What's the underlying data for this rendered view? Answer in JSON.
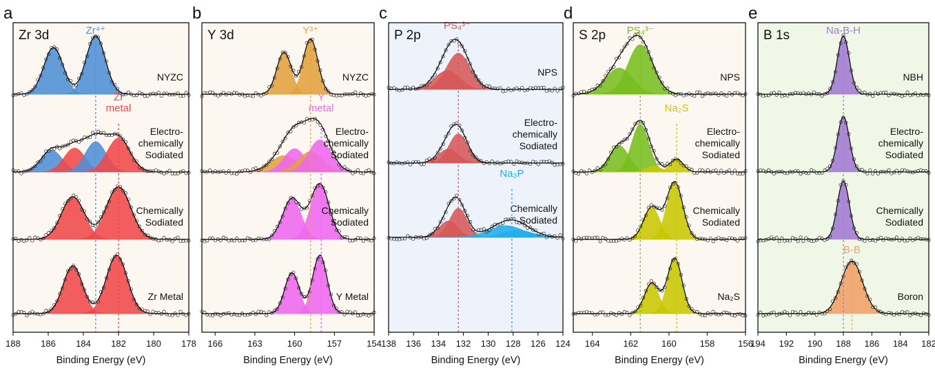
{
  "panel_letters": [
    "a",
    "b",
    "c",
    "d",
    "e"
  ],
  "colors": {
    "zr_blue": "#4f8fd6",
    "red": "#f04848",
    "y_orange": "#e2a23e",
    "magenta": "#ee68ee",
    "p_red": "#d65858",
    "na3p_blue": "#20aee8",
    "s_green": "#78be1e",
    "s_olive": "#c8c800",
    "b_purple": "#a07ad2",
    "b_orange": "#f0a068",
    "bg_a": "#fdf7f2",
    "bg_b": "#fdf7f2",
    "bg_c": "#eef3fb",
    "bg_d": "#fdf7f2",
    "bg_e": "#f1f7e6"
  },
  "chart_data": [
    {
      "type": "line",
      "panel": "a",
      "title": "Zr 3d",
      "xlabel": "Binding Energy (eV)",
      "x_reversed": true,
      "xlim": [
        188,
        178
      ],
      "xticks": [
        188,
        186,
        184,
        182,
        180,
        178
      ],
      "bg_key": "bg_a",
      "annotations": [
        {
          "text": "Zr⁴⁺",
          "color_key": "zr_blue",
          "x": 183.3,
          "trace": 0
        },
        {
          "text": "Zr",
          "color_key": "red",
          "x": 182.0,
          "trace": 1,
          "line2": "metal"
        }
      ],
      "ref_lines": [
        {
          "x": 183.3,
          "color_key": "zr_blue",
          "from_trace": 0,
          "to_trace": 3
        },
        {
          "x": 182.0,
          "color_key": "red",
          "from_trace": 1,
          "to_trace": 3
        }
      ],
      "traces": [
        {
          "label": [
            "NYZC"
          ],
          "peaks": [
            {
              "center": 185.7,
              "height": 0.8,
              "width": 0.55,
              "color_key": "zr_blue"
            },
            {
              "center": 183.3,
              "height": 1.0,
              "width": 0.55,
              "color_key": "zr_blue"
            }
          ]
        },
        {
          "label": [
            "Electro-",
            "chemically",
            "Sodiated"
          ],
          "peaks": [
            {
              "center": 185.8,
              "height": 0.37,
              "width": 0.6,
              "color_key": "zr_blue"
            },
            {
              "center": 184.5,
              "height": 0.41,
              "width": 0.6,
              "color_key": "red"
            },
            {
              "center": 183.3,
              "height": 0.52,
              "width": 0.6,
              "color_key": "zr_blue"
            },
            {
              "center": 182.0,
              "height": 0.58,
              "width": 0.65,
              "color_key": "red"
            }
          ]
        },
        {
          "label": [
            "Chemically",
            "Sodiated"
          ],
          "peaks": [
            {
              "center": 184.6,
              "height": 0.73,
              "width": 0.65,
              "color_key": "red"
            },
            {
              "center": 182.0,
              "height": 0.9,
              "width": 0.7,
              "color_key": "red"
            }
          ]
        },
        {
          "label": [
            "Zr Metal"
          ],
          "peaks": [
            {
              "center": 184.6,
              "height": 0.82,
              "width": 0.55,
              "color_key": "red"
            },
            {
              "center": 182.1,
              "height": 1.0,
              "width": 0.6,
              "color_key": "red"
            }
          ]
        }
      ]
    },
    {
      "type": "line",
      "panel": "b",
      "title": "Y 3d",
      "xlabel": "Binding Energy (eV)",
      "x_reversed": true,
      "xlim": [
        167,
        154
      ],
      "xticks": [
        166,
        163,
        160,
        157,
        154
      ],
      "bg_key": "bg_b",
      "annotations": [
        {
          "text": "Y³⁺",
          "color_key": "y_orange",
          "x": 158.8,
          "trace": 0
        },
        {
          "text": "Y",
          "color_key": "magenta",
          "x": 158.0,
          "trace": 1,
          "line2": "metal"
        }
      ],
      "ref_lines": [
        {
          "x": 158.8,
          "color_key": "y_orange",
          "from_trace": 0,
          "to_trace": 3
        },
        {
          "x": 158.0,
          "color_key": "magenta",
          "from_trace": 1,
          "to_trace": 3
        }
      ],
      "traces": [
        {
          "label": [
            "NYZC"
          ],
          "peaks": [
            {
              "center": 160.8,
              "height": 0.72,
              "width": 0.55,
              "color_key": "y_orange"
            },
            {
              "center": 158.8,
              "height": 0.95,
              "width": 0.55,
              "color_key": "y_orange"
            }
          ]
        },
        {
          "label": [
            "Electro-",
            "chemically",
            "Sodiated"
          ],
          "peaks": [
            {
              "center": 160.8,
              "height": 0.28,
              "width": 1.0,
              "color_key": "y_orange"
            },
            {
              "center": 160.0,
              "height": 0.4,
              "width": 0.8,
              "color_key": "magenta"
            },
            {
              "center": 158.8,
              "height": 0.35,
              "width": 0.9,
              "color_key": "y_orange"
            },
            {
              "center": 158.1,
              "height": 0.55,
              "width": 0.85,
              "color_key": "magenta"
            }
          ]
        },
        {
          "label": [
            "Chemically",
            "Sodiated"
          ],
          "peaks": [
            {
              "center": 160.2,
              "height": 0.7,
              "width": 0.7,
              "color_key": "magenta"
            },
            {
              "center": 158.1,
              "height": 0.95,
              "width": 0.7,
              "color_key": "magenta"
            }
          ]
        },
        {
          "label": [
            "Y Metal"
          ],
          "peaks": [
            {
              "center": 160.2,
              "height": 0.7,
              "width": 0.55,
              "color_key": "magenta"
            },
            {
              "center": 158.1,
              "height": 1.0,
              "width": 0.55,
              "color_key": "magenta"
            }
          ]
        }
      ]
    },
    {
      "type": "line",
      "panel": "c",
      "title": "P 2p",
      "xlabel": "Binding Energy (eV)",
      "x_reversed": true,
      "xlim": [
        138,
        124
      ],
      "xticks": [
        138,
        136,
        134,
        132,
        130,
        128,
        126,
        124
      ],
      "bg_key": "bg_c",
      "annotations": [
        {
          "text": "PS₄³⁻",
          "color_key": "p_red",
          "x": 132.5,
          "trace": 0
        },
        {
          "text": "Na₃P",
          "color_key": "na3p_blue",
          "x": 128.1,
          "trace": 2
        }
      ],
      "ref_lines": [
        {
          "x": 132.4,
          "color_key": "p_red",
          "from_trace": 0,
          "to_trace": 2
        },
        {
          "x": 128.1,
          "color_key": "na3p_blue",
          "from_trace": 2,
          "to_trace": 2
        }
      ],
      "traces": [
        {
          "label": [
            "NPS"
          ],
          "peaks": [
            {
              "center": 133.3,
              "height": 0.32,
              "width": 1.0,
              "color_key": "p_red"
            },
            {
              "center": 132.4,
              "height": 0.62,
              "width": 0.95,
              "color_key": "p_red"
            }
          ]
        },
        {
          "label": [
            "Electro-",
            "chemically",
            "Sodiated"
          ],
          "peaks": [
            {
              "center": 133.2,
              "height": 0.24,
              "width": 0.8,
              "color_key": "p_red"
            },
            {
              "center": 132.4,
              "height": 0.5,
              "width": 0.75,
              "color_key": "p_red"
            }
          ]
        },
        {
          "label": [
            "Chemically",
            "Sodiated"
          ],
          "peaks": [
            {
              "center": 133.2,
              "height": 0.28,
              "width": 0.75,
              "color_key": "p_red"
            },
            {
              "center": 132.4,
              "height": 0.5,
              "width": 0.7,
              "color_key": "p_red"
            },
            {
              "center": 128.6,
              "height": 0.2,
              "width": 1.4,
              "color_key": "na3p_blue"
            },
            {
              "center": 127.6,
              "height": 0.12,
              "width": 1.2,
              "color_key": "na3p_blue"
            }
          ]
        }
      ]
    },
    {
      "type": "line",
      "panel": "d",
      "title": "S 2p",
      "xlabel": "Binding Energy (eV)",
      "x_reversed": true,
      "xlim": [
        165,
        156
      ],
      "xticks": [
        164,
        162,
        160,
        158,
        156
      ],
      "bg_key": "bg_d",
      "annotations": [
        {
          "text": "PS₄³⁻",
          "color_key": "s_green",
          "x": 161.5,
          "trace": 0
        },
        {
          "text": "Na₂S",
          "color_key": "s_olive",
          "x": 159.6,
          "trace": 1
        }
      ],
      "ref_lines": [
        {
          "x": 161.5,
          "color_key": "s_green",
          "from_trace": 0,
          "to_trace": 2
        },
        {
          "x": 159.6,
          "color_key": "s_olive",
          "from_trace": 1,
          "to_trace": 3
        }
      ],
      "traces": [
        {
          "label": [
            "NPS"
          ],
          "peaks": [
            {
              "center": 162.6,
              "height": 0.45,
              "width": 0.7,
              "color_key": "s_green"
            },
            {
              "center": 161.5,
              "height": 0.85,
              "width": 0.65,
              "color_key": "s_green"
            }
          ]
        },
        {
          "label": [
            "Electro-",
            "chemically",
            "Sodiated"
          ],
          "peaks": [
            {
              "center": 162.6,
              "height": 0.45,
              "width": 0.5,
              "color_key": "s_green"
            },
            {
              "center": 161.5,
              "height": 0.82,
              "width": 0.45,
              "color_key": "s_green"
            },
            {
              "center": 160.8,
              "height": 0.1,
              "width": 0.4,
              "color_key": "s_olive"
            },
            {
              "center": 159.6,
              "height": 0.22,
              "width": 0.35,
              "color_key": "s_olive"
            }
          ]
        },
        {
          "label": [
            "Chemically",
            "Sodiated"
          ],
          "peaks": [
            {
              "center": 160.9,
              "height": 0.55,
              "width": 0.42,
              "color_key": "s_olive"
            },
            {
              "center": 159.7,
              "height": 0.98,
              "width": 0.42,
              "color_key": "s_olive"
            }
          ]
        },
        {
          "label": [
            "Na₂S"
          ],
          "peaks": [
            {
              "center": 160.9,
              "height": 0.52,
              "width": 0.38,
              "color_key": "s_olive"
            },
            {
              "center": 159.7,
              "height": 0.95,
              "width": 0.38,
              "color_key": "s_olive"
            }
          ]
        }
      ]
    },
    {
      "type": "line",
      "panel": "e",
      "title": "B 1s",
      "xlabel": "Binding Energy (eV)",
      "x_reversed": true,
      "xlim": [
        194,
        182
      ],
      "xticks": [
        194,
        192,
        190,
        188,
        186,
        184,
        182
      ],
      "bg_key": "bg_e",
      "annotations": [
        {
          "text": "Na-B-H",
          "color_key": "b_purple",
          "x": 188.0,
          "trace": 0
        },
        {
          "text": "B-B",
          "color_key": "b_orange",
          "x": 187.4,
          "trace": 3
        }
      ],
      "ref_lines": [
        {
          "x": 188.0,
          "color_key": "b_purple",
          "from_trace": 0,
          "to_trace": 3
        },
        {
          "x": 187.4,
          "color_key": "b_orange",
          "from_trace": 3,
          "to_trace": 3
        }
      ],
      "traces": [
        {
          "label": [
            "NBH"
          ],
          "peaks": [
            {
              "center": 188.0,
              "height": 1.0,
              "width": 0.42,
              "color_key": "b_purple"
            }
          ]
        },
        {
          "label": [
            "Electro-",
            "chemically",
            "Sodiated"
          ],
          "peaks": [
            {
              "center": 188.0,
              "height": 0.95,
              "width": 0.42,
              "color_key": "b_purple"
            }
          ]
        },
        {
          "label": [
            "Chemically",
            "Sodiated"
          ],
          "peaks": [
            {
              "center": 188.0,
              "height": 1.0,
              "width": 0.42,
              "color_key": "b_purple"
            }
          ]
        },
        {
          "label": [
            "Boron"
          ],
          "peaks": [
            {
              "center": 187.4,
              "height": 0.9,
              "width": 0.75,
              "color_key": "b_orange"
            }
          ]
        }
      ]
    }
  ]
}
